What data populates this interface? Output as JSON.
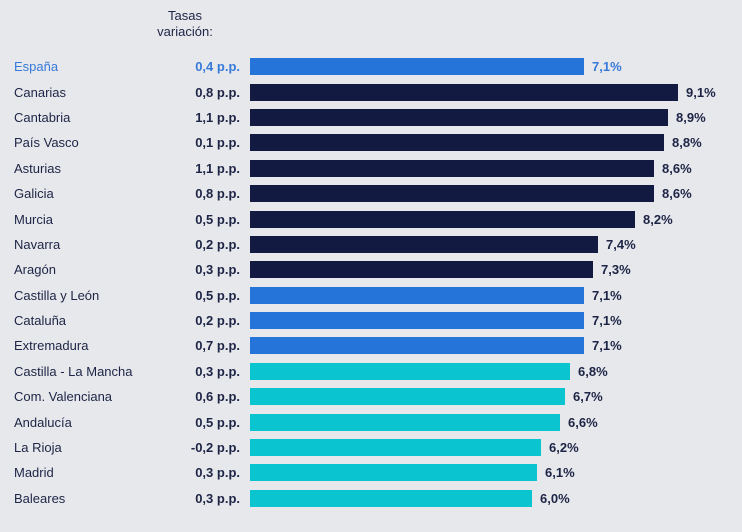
{
  "header": {
    "line1": "Tasas",
    "line2": "variación:"
  },
  "colors": {
    "background": "#e6e8ec",
    "bar_blue": "#2574d9",
    "bar_navy": "#121a42",
    "bar_cyan": "#0ac4d0",
    "text_navy": "#1d2445",
    "highlight_blue": "#3679d9"
  },
  "chart_data": {
    "type": "bar",
    "orientation": "horizontal",
    "title": "",
    "xlabel": "",
    "ylabel": "",
    "value_unit": "%",
    "xlim": [
      0,
      9.5
    ],
    "grid": false,
    "legend": false,
    "pp_column_header": "Tasas variación:",
    "series": [
      {
        "region": "España",
        "pp_change": 0.4,
        "pp_label": "0,4 p.p.",
        "value": 7.1,
        "value_label": "7,1%",
        "color": "#2574d9",
        "highlighted": true
      },
      {
        "region": "Canarias",
        "pp_change": 0.8,
        "pp_label": "0,8 p.p.",
        "value": 9.1,
        "value_label": "9,1%",
        "color": "#121a42",
        "highlighted": false
      },
      {
        "region": "Cantabria",
        "pp_change": 1.1,
        "pp_label": "1,1 p.p.",
        "value": 8.9,
        "value_label": "8,9%",
        "color": "#121a42",
        "highlighted": false
      },
      {
        "region": "País Vasco",
        "pp_change": 0.1,
        "pp_label": "0,1 p.p.",
        "value": 8.8,
        "value_label": "8,8%",
        "color": "#121a42",
        "highlighted": false
      },
      {
        "region": "Asturias",
        "pp_change": 1.1,
        "pp_label": "1,1 p.p.",
        "value": 8.6,
        "value_label": "8,6%",
        "color": "#121a42",
        "highlighted": false
      },
      {
        "region": "Galicia",
        "pp_change": 0.8,
        "pp_label": "0,8 p.p.",
        "value": 8.6,
        "value_label": "8,6%",
        "color": "#121a42",
        "highlighted": false
      },
      {
        "region": "Murcia",
        "pp_change": 0.5,
        "pp_label": "0,5 p.p.",
        "value": 8.2,
        "value_label": "8,2%",
        "color": "#121a42",
        "highlighted": false
      },
      {
        "region": "Navarra",
        "pp_change": 0.2,
        "pp_label": "0,2 p.p.",
        "value": 7.4,
        "value_label": "7,4%",
        "color": "#121a42",
        "highlighted": false
      },
      {
        "region": "Aragón",
        "pp_change": 0.3,
        "pp_label": "0,3 p.p.",
        "value": 7.3,
        "value_label": "7,3%",
        "color": "#121a42",
        "highlighted": false
      },
      {
        "region": "Castilla y León",
        "pp_change": 0.5,
        "pp_label": "0,5 p.p.",
        "value": 7.1,
        "value_label": "7,1%",
        "color": "#2574d9",
        "highlighted": false
      },
      {
        "region": "Cataluña",
        "pp_change": 0.2,
        "pp_label": "0,2 p.p.",
        "value": 7.1,
        "value_label": "7,1%",
        "color": "#2574d9",
        "highlighted": false
      },
      {
        "region": "Extremadura",
        "pp_change": 0.7,
        "pp_label": "0,7 p.p.",
        "value": 7.1,
        "value_label": "7,1%",
        "color": "#2574d9",
        "highlighted": false
      },
      {
        "region": "Castilla - La Mancha",
        "pp_change": 0.3,
        "pp_label": "0,3 p.p.",
        "value": 6.8,
        "value_label": "6,8%",
        "color": "#0ac4d0",
        "highlighted": false
      },
      {
        "region": "Com. Valenciana",
        "pp_change": 0.6,
        "pp_label": "0,6 p.p.",
        "value": 6.7,
        "value_label": "6,7%",
        "color": "#0ac4d0",
        "highlighted": false
      },
      {
        "region": "Andalucía",
        "pp_change": 0.5,
        "pp_label": "0,5 p.p.",
        "value": 6.6,
        "value_label": "6,6%",
        "color": "#0ac4d0",
        "highlighted": false
      },
      {
        "region": "La Rioja",
        "pp_change": -0.2,
        "pp_label": "-0,2 p.p.",
        "value": 6.2,
        "value_label": "6,2%",
        "color": "#0ac4d0",
        "highlighted": false
      },
      {
        "region": "Madrid",
        "pp_change": 0.3,
        "pp_label": "0,3 p.p.",
        "value": 6.1,
        "value_label": "6,1%",
        "color": "#0ac4d0",
        "highlighted": false
      },
      {
        "region": "Baleares",
        "pp_change": 0.3,
        "pp_label": "0,3 p.p.",
        "value": 6.0,
        "value_label": "6,0%",
        "color": "#0ac4d0",
        "highlighted": false
      }
    ]
  }
}
